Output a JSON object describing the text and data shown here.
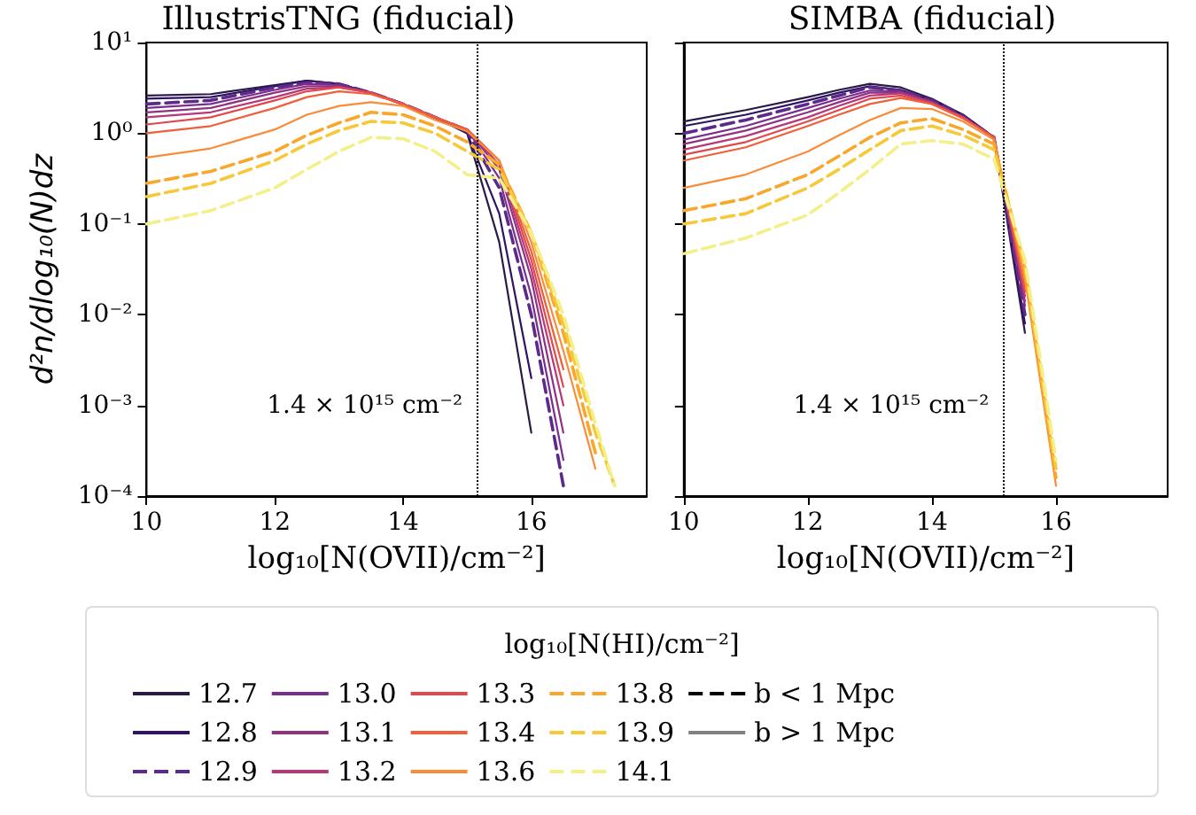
{
  "chart_data": [
    {
      "type": "line",
      "title": "IllustrisTNG (fiducial)",
      "xlabel": "log₁₀[N(OVII)/cm⁻²]",
      "ylabel": "d²n/dlog₁₀(N)dz",
      "legend_title": "log₁₀[N(HI)/cm⁻²]",
      "legend": "bottom",
      "log": "y",
      "grid": false,
      "marker": "none",
      "xlim": [
        10,
        17.8
      ],
      "xticks": [
        10,
        12,
        14,
        16
      ],
      "ylim": [
        0.0001,
        10
      ],
      "yticks": [
        {
          "value": 0.0001,
          "label": "10⁻⁴"
        },
        {
          "value": 0.001,
          "label": "10⁻³"
        },
        {
          "value": 0.01,
          "label": "10⁻²"
        },
        {
          "value": 0.1,
          "label": "10⁻¹"
        },
        {
          "value": 1,
          "label": "10⁰"
        },
        {
          "value": 10,
          "label": "10¹"
        }
      ],
      "ref_lines": [
        {
          "axis": "x",
          "value": 15.15,
          "label": "1.4 × 10¹⁵ cm⁻²",
          "color": "#000000",
          "line_style": "dotted"
        }
      ],
      "x": [
        10,
        11,
        12,
        12.5,
        13,
        13.5,
        14,
        14.5,
        15,
        15.5,
        16,
        16.5,
        17,
        17.3
      ],
      "series": [
        {
          "name": "12.7",
          "color": "#2a1a45",
          "line_style": "solid",
          "values": [
            2.6,
            2.7,
            3.4,
            3.8,
            3.5,
            2.8,
            2.1,
            1.5,
            1.0,
            0.063,
            0.0005,
            null,
            null,
            null
          ]
        },
        {
          "name": "12.8",
          "color": "#2f1463",
          "line_style": "solid",
          "values": [
            2.4,
            2.5,
            3.3,
            3.8,
            3.5,
            2.8,
            2.1,
            1.5,
            1.0,
            0.13,
            0.002,
            null,
            null,
            null
          ]
        },
        {
          "name": "12.9",
          "color": "#5c2a8a",
          "line_style": "dashed",
          "values": [
            2.1,
            2.3,
            3.2,
            3.6,
            3.5,
            2.8,
            2.1,
            1.5,
            1.05,
            0.25,
            0.01,
            0.00013,
            null,
            null
          ]
        },
        {
          "name": "13.0",
          "color": "#7b2d8e",
          "line_style": "solid",
          "values": [
            1.9,
            2.1,
            3.0,
            3.5,
            3.4,
            2.8,
            2.1,
            1.5,
            1.1,
            0.32,
            0.016,
            0.00025,
            null,
            null
          ]
        },
        {
          "name": "13.1",
          "color": "#8f3281",
          "line_style": "solid",
          "values": [
            1.7,
            1.9,
            2.8,
            3.3,
            3.3,
            2.8,
            2.1,
            1.5,
            1.1,
            0.4,
            0.025,
            0.0005,
            null,
            null
          ]
        },
        {
          "name": "13.2",
          "color": "#b73779",
          "line_style": "solid",
          "values": [
            1.5,
            1.7,
            2.5,
            3.1,
            3.2,
            2.8,
            2.1,
            1.5,
            1.1,
            0.45,
            0.032,
            0.001,
            null,
            null
          ]
        },
        {
          "name": "13.3",
          "color": "#e0484b",
          "line_style": "solid",
          "values": [
            1.25,
            1.5,
            2.3,
            2.9,
            3.2,
            2.8,
            2.1,
            1.5,
            1.1,
            0.5,
            0.04,
            0.0016,
            null,
            null
          ]
        },
        {
          "name": "13.4",
          "color": "#ee5f3a",
          "line_style": "solid",
          "values": [
            1.0,
            1.2,
            1.9,
            2.5,
            2.9,
            2.7,
            2.1,
            1.5,
            1.1,
            0.5,
            0.05,
            0.0025,
            null,
            null
          ]
        },
        {
          "name": "13.6",
          "color": "#f98c3a",
          "line_style": "solid",
          "values": [
            0.54,
            0.68,
            1.1,
            1.6,
            2.0,
            2.2,
            2.0,
            1.4,
            1.05,
            0.5,
            0.063,
            0.004,
            0.0002,
            null
          ]
        },
        {
          "name": "13.8",
          "color": "#f9a72a",
          "line_style": "dashed",
          "values": [
            0.28,
            0.38,
            0.63,
            0.95,
            1.3,
            1.7,
            1.6,
            1.2,
            0.8,
            0.45,
            0.08,
            0.0063,
            0.0003,
            null
          ]
        },
        {
          "name": "13.9",
          "color": "#f5c93a",
          "line_style": "dashed",
          "values": [
            0.2,
            0.28,
            0.5,
            0.76,
            1.07,
            1.35,
            1.3,
            1.0,
            0.63,
            0.4,
            0.08,
            0.008,
            0.0005,
            0.00013
          ]
        },
        {
          "name": "14.1",
          "color": "#f3f08a",
          "line_style": "dashed",
          "values": [
            0.1,
            0.14,
            0.25,
            0.4,
            0.63,
            0.9,
            0.87,
            0.63,
            0.35,
            0.32,
            0.08,
            0.01,
            0.00063,
            0.00013
          ]
        },
        {
          "name": "b < 1 Mpc",
          "color": "#000000",
          "line_style": "dashed",
          "values": [
            null,
            null,
            null,
            null,
            null,
            null,
            null,
            null,
            null,
            null,
            null,
            null,
            null,
            null
          ]
        },
        {
          "name": "b > 1 Mpc",
          "color": "#808080",
          "line_style": "solid",
          "values": [
            null,
            null,
            null,
            null,
            null,
            null,
            null,
            null,
            null,
            null,
            null,
            null,
            null,
            null
          ]
        }
      ]
    },
    {
      "type": "line",
      "title": "SIMBA (fiducial)",
      "xlabel": "log₁₀[N(OVII)/cm⁻²]",
      "log": "y",
      "grid": false,
      "marker": "none",
      "tick_labels": "x",
      "xlim": [
        10,
        17.8
      ],
      "xticks": [
        10,
        12,
        14,
        16
      ],
      "ylim": [
        0.0001,
        10
      ],
      "yticks": [
        {
          "value": 0.0001,
          "label": null
        },
        {
          "value": 0.001,
          "label": null
        },
        {
          "value": 0.01,
          "label": null
        },
        {
          "value": 0.1,
          "label": null
        },
        {
          "value": 1,
          "label": null
        },
        {
          "value": 10,
          "label": null
        }
      ],
      "ref_lines": [
        {
          "axis": "x",
          "value": 15.15,
          "label": "1.4 × 10¹⁵ cm⁻²",
          "color": "#000000",
          "line_style": "dotted"
        }
      ],
      "x": [
        10,
        11,
        12,
        12.5,
        13,
        13.5,
        14,
        14.5,
        15,
        15.5,
        16
      ],
      "series": [
        {
          "color": "#2a1a45",
          "line_style": "solid",
          "values": [
            1.35,
            1.8,
            2.5,
            3.0,
            3.5,
            3.2,
            2.4,
            1.6,
            0.9,
            0.0063,
            null
          ]
        },
        {
          "color": "#2f1463",
          "line_style": "solid",
          "values": [
            1.2,
            1.6,
            2.3,
            2.8,
            3.3,
            3.0,
            2.3,
            1.6,
            0.9,
            0.008,
            null
          ]
        },
        {
          "color": "#5c2a8a",
          "line_style": "dashed",
          "values": [
            1.0,
            1.4,
            2.1,
            2.6,
            3.2,
            2.95,
            2.3,
            1.55,
            0.9,
            0.01,
            null
          ]
        },
        {
          "color": "#7b2d8e",
          "line_style": "solid",
          "values": [
            0.85,
            1.2,
            1.9,
            2.4,
            2.95,
            2.9,
            2.2,
            1.5,
            0.9,
            0.0125,
            null
          ]
        },
        {
          "color": "#8f3281",
          "line_style": "solid",
          "values": [
            0.76,
            1.07,
            1.7,
            2.2,
            2.8,
            2.8,
            2.2,
            1.5,
            0.9,
            0.014,
            null
          ]
        },
        {
          "color": "#b73779",
          "line_style": "solid",
          "values": [
            0.66,
            0.93,
            1.5,
            2.0,
            2.6,
            2.75,
            2.2,
            1.5,
            0.9,
            0.016,
            null
          ]
        },
        {
          "color": "#e0484b",
          "line_style": "solid",
          "values": [
            0.58,
            0.8,
            1.35,
            1.8,
            2.4,
            2.6,
            2.1,
            1.5,
            0.9,
            0.018,
            null
          ]
        },
        {
          "color": "#ee5f3a",
          "line_style": "solid",
          "values": [
            0.5,
            0.7,
            1.2,
            1.6,
            2.1,
            2.45,
            2.1,
            1.45,
            0.9,
            0.02,
            null
          ]
        },
        {
          "color": "#f98c3a",
          "line_style": "solid",
          "values": [
            0.25,
            0.35,
            0.63,
            0.95,
            1.4,
            1.9,
            1.85,
            1.35,
            0.85,
            0.025,
            0.00013
          ]
        },
        {
          "color": "#f9a72a",
          "line_style": "dashed",
          "values": [
            0.14,
            0.19,
            0.35,
            0.56,
            0.9,
            1.3,
            1.45,
            1.1,
            0.76,
            0.032,
            0.00016
          ]
        },
        {
          "color": "#f5c93a",
          "line_style": "dashed",
          "values": [
            0.1,
            0.13,
            0.25,
            0.4,
            0.66,
            1.07,
            1.2,
            0.95,
            0.66,
            0.035,
            0.0002
          ]
        },
        {
          "color": "#f3f08a",
          "line_style": "dashed",
          "values": [
            0.047,
            0.07,
            0.126,
            0.22,
            0.4,
            0.76,
            0.83,
            0.76,
            0.52,
            0.04,
            0.00025
          ]
        }
      ]
    }
  ]
}
